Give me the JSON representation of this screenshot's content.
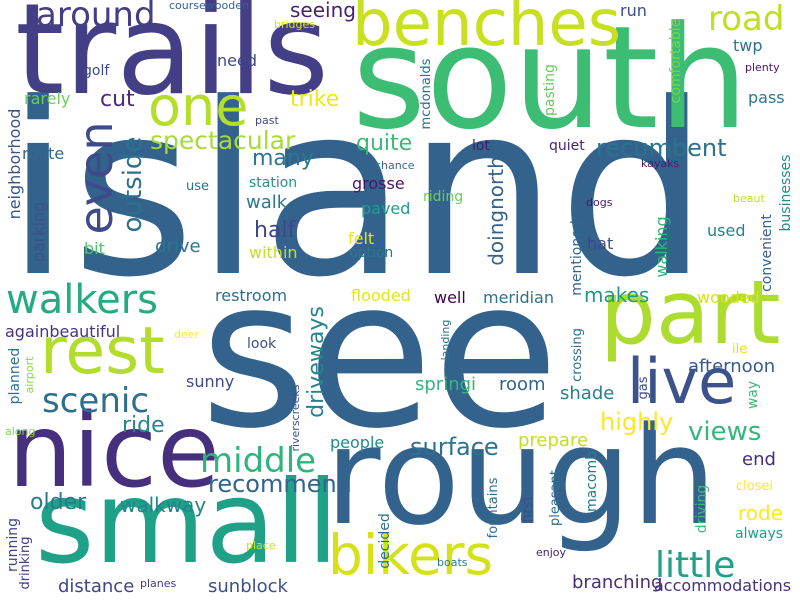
{
  "words": [
    {
      "text": "island",
      "color": "#33638d"
    },
    {
      "text": "see",
      "color": "#33638d"
    },
    {
      "text": "south",
      "color": "#3dbc74"
    },
    {
      "text": "rough",
      "color": "#33638d"
    },
    {
      "text": "trails",
      "color": "#433e85"
    },
    {
      "text": "small",
      "color": "#1fa188"
    },
    {
      "text": "nice",
      "color": "#46307e"
    },
    {
      "text": "part",
      "color": "#addc30"
    },
    {
      "text": "benches",
      "color": "#c8e020"
    },
    {
      "text": "rest",
      "color": "#b2dd2d"
    },
    {
      "text": "live",
      "color": "#3b528b"
    },
    {
      "text": "one",
      "color": "#b5de2b"
    },
    {
      "text": "bikers",
      "color": "#d5e21a"
    },
    {
      "text": "walkers",
      "color": "#25ab82"
    },
    {
      "text": "even",
      "color": "#3e4a89"
    },
    {
      "text": "around",
      "color": "#433e85"
    },
    {
      "text": "middle",
      "color": "#2fb47c"
    },
    {
      "text": "scenic",
      "color": "#2d708e"
    },
    {
      "text": "little",
      "color": "#1fa188"
    },
    {
      "text": "road",
      "color": "#bddf26"
    },
    {
      "text": "outside",
      "color": "#2d708e"
    },
    {
      "text": "views",
      "color": "#35b779"
    },
    {
      "text": "spectacular",
      "color": "#a8db34"
    },
    {
      "text": "recumbent",
      "color": "#2c728e"
    },
    {
      "text": "surface",
      "color": "#2c728e"
    },
    {
      "text": "highly",
      "color": "#fde725"
    },
    {
      "text": "driveways",
      "color": "#26828e"
    },
    {
      "text": "recommend",
      "color": "#32658e"
    },
    {
      "text": "doingnorth",
      "color": "#33638d"
    },
    {
      "text": "walkway",
      "color": "#25838e"
    },
    {
      "text": "many",
      "color": "#2a788e"
    },
    {
      "text": "half",
      "color": "#414487"
    },
    {
      "text": "cut",
      "color": "#472c7a"
    },
    {
      "text": "trike",
      "color": "#f1e51d"
    },
    {
      "text": "quite",
      "color": "#3aba76"
    },
    {
      "text": "makes",
      "color": "#1f998a"
    },
    {
      "text": "ride",
      "color": "#24868e"
    },
    {
      "text": "older",
      "color": "#297a8e"
    },
    {
      "text": "end",
      "color": "#46307e"
    },
    {
      "text": "rode",
      "color": "#fde725"
    },
    {
      "text": "seeing",
      "color": "#482173"
    },
    {
      "text": "afternoon",
      "color": "#375a8c"
    },
    {
      "text": "prepare",
      "color": "#c0df25"
    },
    {
      "text": "people",
      "color": "#23898e"
    },
    {
      "text": "branching",
      "color": "#472d7b"
    },
    {
      "text": "sunblock",
      "color": "#3d4e8a"
    },
    {
      "text": "distance",
      "color": "#404588"
    },
    {
      "text": "accommodations",
      "color": "#46327e"
    },
    {
      "text": "walk",
      "color": "#29798e"
    },
    {
      "text": "drive",
      "color": "#2b758e"
    },
    {
      "text": "paved",
      "color": "#1f9e89"
    },
    {
      "text": "grosse",
      "color": "#481769"
    },
    {
      "text": "room",
      "color": "#33638d"
    },
    {
      "text": "shade",
      "color": "#27808e"
    },
    {
      "text": "springi",
      "color": "#32b67a"
    },
    {
      "text": "flooded",
      "color": "#e5e419"
    },
    {
      "text": "wooded",
      "color": "#d8e219"
    },
    {
      "text": "well",
      "color": "#440154"
    },
    {
      "text": "meridian",
      "color": "#2c728e"
    },
    {
      "text": "restroom",
      "color": "#2e6e8e"
    },
    {
      "text": "againbeautiful",
      "color": "#463480"
    },
    {
      "text": "walking",
      "color": "#2fb47c"
    },
    {
      "text": "hat",
      "color": "#3f4889"
    },
    {
      "text": "used",
      "color": "#26818e"
    },
    {
      "text": "within",
      "color": "#c0df25"
    },
    {
      "text": "felt",
      "color": "#e7e419"
    },
    {
      "text": "option",
      "color": "#2a778e"
    },
    {
      "text": "parking",
      "color": "#3b528b"
    },
    {
      "text": "bit",
      "color": "#50c46a"
    },
    {
      "text": "station",
      "color": "#1f968b"
    },
    {
      "text": "riding",
      "color": "#6ccd5a"
    },
    {
      "text": "lot",
      "color": "#48196b"
    },
    {
      "text": "quiet",
      "color": "#482475"
    },
    {
      "text": "route",
      "color": "#31688e"
    },
    {
      "text": "rarely",
      "color": "#6ccd5a"
    },
    {
      "text": "golf",
      "color": "#3e4989"
    },
    {
      "text": "need",
      "color": "#3e4a89"
    },
    {
      "text": "run",
      "color": "#3e4a89"
    },
    {
      "text": "twp",
      "color": "#2b758e"
    },
    {
      "text": "pass",
      "color": "#2a788e"
    },
    {
      "text": "coursewooden",
      "color": "#355f8d"
    },
    {
      "text": "bridges",
      "color": "#dde318"
    },
    {
      "text": "past",
      "color": "#404688"
    },
    {
      "text": "comfortable",
      "color": "#7ad151"
    },
    {
      "text": "pasting",
      "color": "#65cb5e"
    },
    {
      "text": "chance",
      "color": "#2e6d8e"
    },
    {
      "text": "kayaks",
      "color": "#481b6d"
    },
    {
      "text": "plenty",
      "color": "#481467"
    },
    {
      "text": "use",
      "color": "#2d708e"
    },
    {
      "text": "dogs",
      "color": "#48186a"
    },
    {
      "text": "beaut",
      "color": "#c2df23"
    },
    {
      "text": "mcdonalds",
      "color": "#2c728e"
    },
    {
      "text": "mentioned",
      "color": "#31688e"
    },
    {
      "text": "convenient",
      "color": "#355f8d"
    },
    {
      "text": "businesses",
      "color": "#238a8d"
    },
    {
      "text": "neighborhood",
      "color": "#3b528b"
    },
    {
      "text": "landing",
      "color": "#2e6f8e"
    },
    {
      "text": "gas",
      "color": "#3e4c8a"
    },
    {
      "text": "crossing",
      "color": "#2e6f8e"
    },
    {
      "text": "ile",
      "color": "#dde318"
    },
    {
      "text": "way",
      "color": "#3aba76"
    },
    {
      "text": "look",
      "color": "#3c4f8a"
    },
    {
      "text": "sunny",
      "color": "#3f4889"
    },
    {
      "text": "planned",
      "color": "#2c738e"
    },
    {
      "text": "deer",
      "color": "#fde725"
    },
    {
      "text": "airport",
      "color": "#8bd646"
    },
    {
      "text": "riverscreeks",
      "color": "#3b528b"
    },
    {
      "text": "along",
      "color": "#81d34d"
    },
    {
      "text": "boats",
      "color": "#297b8e"
    },
    {
      "text": "first",
      "color": "#3c4f8a"
    },
    {
      "text": "pleasant",
      "color": "#2e6e8e"
    },
    {
      "text": "fountains",
      "color": "#2e6e8e"
    },
    {
      "text": "macomb",
      "color": "#297b8e"
    },
    {
      "text": "driving",
      "color": "#3dbc74"
    },
    {
      "text": "closei",
      "color": "#fde725"
    },
    {
      "text": "always",
      "color": "#1f9e89"
    },
    {
      "text": "decided",
      "color": "#2c728e"
    },
    {
      "text": "enjoy",
      "color": "#482173"
    },
    {
      "text": "running",
      "color": "#404588"
    },
    {
      "text": "drinking",
      "color": "#424086"
    },
    {
      "text": "place",
      "color": "#d8e219"
    },
    {
      "text": "planes",
      "color": "#453882"
    }
  ]
}
